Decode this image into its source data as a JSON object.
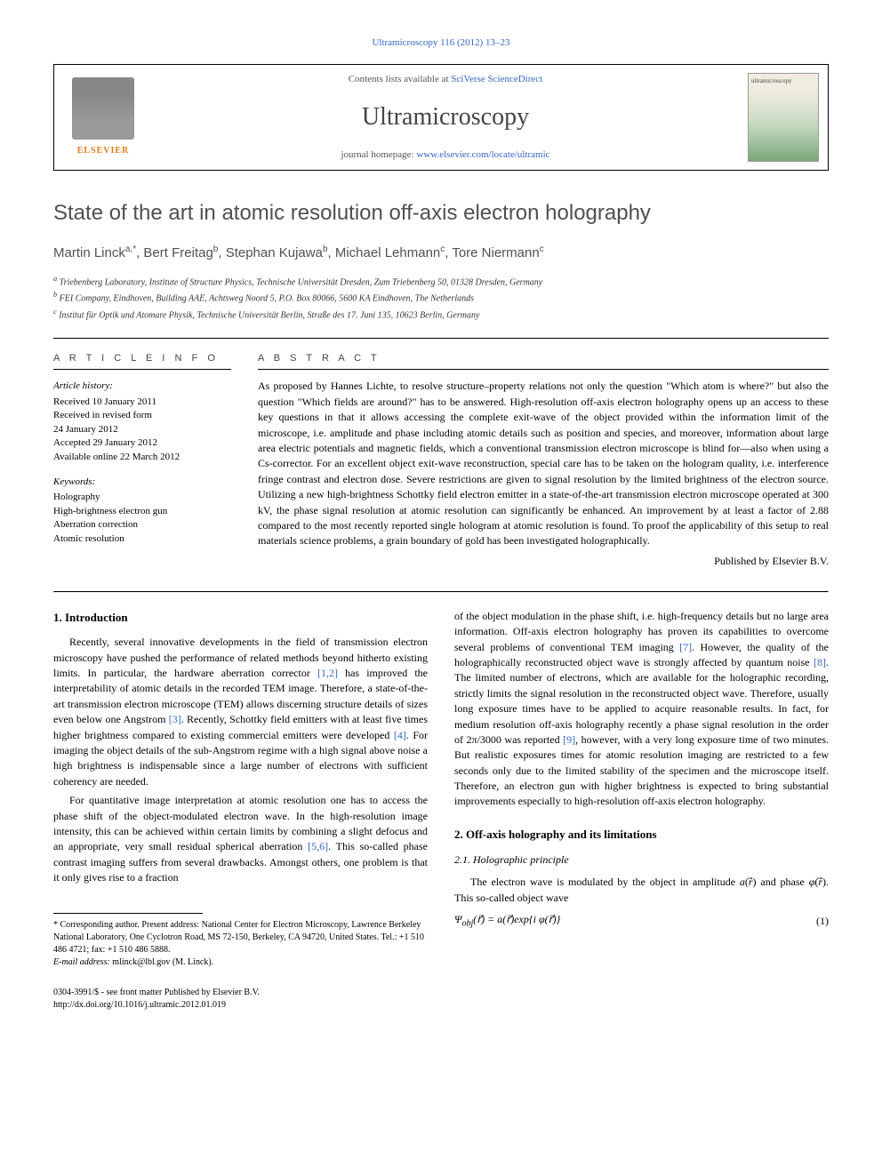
{
  "journal_ref": "Ultramicroscopy 116 (2012) 13–23",
  "header": {
    "contents_prefix": "Contents lists available at ",
    "contents_link": "SciVerse ScienceDirect",
    "journal_title": "Ultramicroscopy",
    "homepage_prefix": "journal homepage: ",
    "homepage_link": "www.elsevier.com/locate/ultramic",
    "elsevier": "ELSEVIER",
    "cover_label": "ultramicroscopy"
  },
  "title": "State of the art in atomic resolution off-axis electron holography",
  "authors_html": "Martin Linck <sup>a,*</sup>, Bert Freitag <sup>b</sup>, Stephan Kujawa <sup>b</sup>, Michael Lehmann <sup>c</sup>, Tore Niermann <sup>c</sup>",
  "authors": [
    {
      "name": "Martin Linck",
      "sup": "a,*"
    },
    {
      "name": "Bert Freitag",
      "sup": "b"
    },
    {
      "name": "Stephan Kujawa",
      "sup": "b"
    },
    {
      "name": "Michael Lehmann",
      "sup": "c"
    },
    {
      "name": "Tore Niermann",
      "sup": "c"
    }
  ],
  "affiliations": {
    "a": "Triebenberg Laboratory, Institute of Structure Physics, Technische Universität Dresden, Zum Triebenberg 50, 01328 Dresden, Germany",
    "b": "FEI Company, Eindhoven, Building AAE, Achtsweg Noord 5, P.O. Box 80066, 5600 KA Eindhoven, The Netherlands",
    "c": "Institut für Optik und Atomare Physik, Technische Universität Berlin, Straße des 17. Juni 135, 10623 Berlin, Germany"
  },
  "info": {
    "heading": "A R T I C L E  I N F O",
    "history_label": "Article history:",
    "history": [
      "Received 10 January 2011",
      "Received in revised form",
      "24 January 2012",
      "Accepted 29 January 2012",
      "Available online 22 March 2012"
    ],
    "keywords_label": "Keywords:",
    "keywords": [
      "Holography",
      "High-brightness electron gun",
      "Aberration correction",
      "Atomic resolution"
    ]
  },
  "abstract": {
    "heading": "A B S T R A C T",
    "text": "As proposed by Hannes Lichte, to resolve structure–property relations not only the question \"Which atom is where?\" but also the question \"Which fields are around?\" has to be answered. High-resolution off-axis electron holography opens up an access to these key questions in that it allows accessing the complete exit-wave of the object provided within the information limit of the microscope, i.e. amplitude and phase including atomic details such as position and species, and moreover, information about large area electric potentials and magnetic fields, which a conventional transmission electron microscope is blind for—also when using a Cs-corrector. For an excellent object exit-wave reconstruction, special care has to be taken on the hologram quality, i.e. interference fringe contrast and electron dose. Severe restrictions are given to signal resolution by the limited brightness of the electron source. Utilizing a new high-brightness Schottky field electron emitter in a state-of-the-art transmission electron microscope operated at 300 kV, the phase signal resolution at atomic resolution can significantly be enhanced. An improvement by at least a factor of 2.88 compared to the most recently reported single hologram at atomic resolution is found. To proof the applicability of this setup to real materials science problems, a grain boundary of gold has been investigated holographically.",
    "publisher": "Published by Elsevier B.V."
  },
  "sections": {
    "s1": {
      "heading": "1.  Introduction",
      "p1": "Recently, several innovative developments in the field of transmission electron microscopy have pushed the performance of related methods beyond hitherto existing limits. In particular, the hardware aberration corrector [1,2] has improved the interpretability of atomic details in the recorded TEM image. Therefore, a state-of-the-art transmission electron microscope (TEM) allows discerning structure details of sizes even below one Angstrom [3]. Recently, Schottky field emitters with at least five times higher brightness compared to existing commercial emitters were developed [4]. For imaging the object details of the sub-Angstrom regime with a high signal above noise a high brightness is indispensable since a large number of electrons with sufficient coherency are needed.",
      "p2": "For quantitative image interpretation at atomic resolution one has to access the phase shift of the object-modulated electron wave. In the high-resolution image intensity, this can be achieved within certain limits by combining a slight defocus and an appropriate, very small residual spherical aberration [5,6]. This so-called phase contrast imaging suffers from several drawbacks. Amongst others, one problem is that it only gives rise to a fraction",
      "p3": "of the object modulation in the phase shift, i.e. high-frequency details but no large area information. Off-axis electron holography has proven its capabilities to overcome several problems of conventional TEM imaging [7]. However, the quality of the holographically reconstructed object wave is strongly affected by quantum noise [8]. The limited number of electrons, which are available for the holographic recording, strictly limits the signal resolution in the reconstructed object wave. Therefore, usually long exposure times have to be applied to acquire reasonable results. In fact, for medium resolution off-axis holography recently a phase signal resolution in the order of 2π/3000 was reported [9], however, with a very long exposure time of two minutes. But realistic exposures times for atomic resolution imaging are restricted to a few seconds only due to the limited stability of the specimen and the microscope itself. Therefore, an electron gun with higher brightness is expected to bring substantial improvements especially to high-resolution off-axis electron holography."
    },
    "s2": {
      "heading": "2.  Off-axis holography and its limitations",
      "sub21": "2.1.  Holographic principle",
      "p1": "The electron wave is modulated by the object in amplitude a(r⃗) and phase φ(r⃗). This so-called object wave",
      "eq1": "Ψ_obj(r⃗) = a(r⃗)exp{i φ(r⃗)}",
      "eq1_num": "(1)"
    }
  },
  "footnote": {
    "corr": "* Corresponding author. Present address: National Center for Electron Microscopy, Lawrence Berkeley National Laboratory, One Cyclotron Road, MS 72-150, Berkeley, CA 94720, United States. Tel.: +1 510 486 4721; fax: +1 510 486 5888.",
    "email_label": "E-mail address:",
    "email": "mlinck@lbl.gov (M. Linck)."
  },
  "footer": {
    "line1": "0304-3991/$ - see front matter Published by Elsevier B.V.",
    "line2": "http://dx.doi.org/10.1016/j.ultramic.2012.01.019"
  },
  "colors": {
    "link": "#3666c2",
    "elsevier_orange": "#e67817",
    "text": "#000000",
    "heading_gray": "#505050"
  }
}
